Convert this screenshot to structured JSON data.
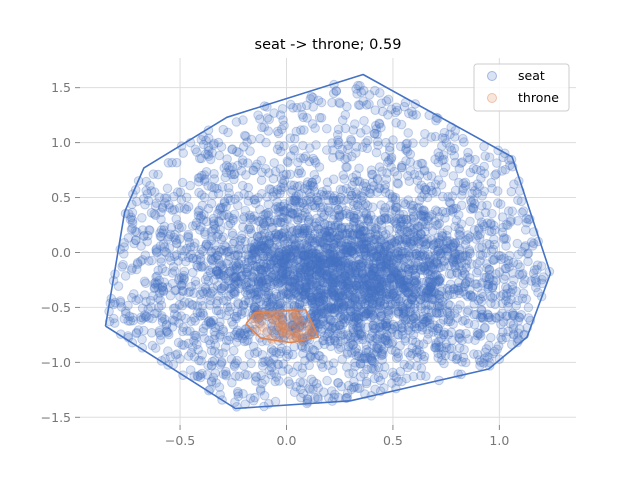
{
  "chart_data": {
    "type": "scatter",
    "title": "seat -> throne; 0.59",
    "xlabel": "",
    "ylabel": "",
    "xlim": [
      -0.97,
      1.36
    ],
    "ylim": [
      -1.57,
      1.77
    ],
    "xticks": [
      -0.5,
      0.0,
      0.5,
      1.0
    ],
    "yticks": [
      -1.5,
      -1.0,
      -0.5,
      0.0,
      0.5,
      1.0,
      1.5
    ],
    "xtick_labels": [
      "−0.5",
      "0.0",
      "0.5",
      "1.0"
    ],
    "ytick_labels": [
      "−1.5",
      "−1.0",
      "−0.5",
      "0.0",
      "0.5",
      "1.0",
      "1.5"
    ],
    "grid": true,
    "legend_position": "top-right",
    "series": [
      {
        "name": "seat",
        "color": "#4472c4",
        "point_count": 4000,
        "hull": [
          [
            -0.85,
            -0.67
          ],
          [
            -0.76,
            0.37
          ],
          [
            -0.67,
            0.77
          ],
          [
            -0.28,
            1.23
          ],
          [
            0.36,
            1.62
          ],
          [
            1.06,
            0.87
          ],
          [
            1.24,
            -0.19
          ],
          [
            1.13,
            -0.77
          ],
          [
            0.95,
            -1.06
          ],
          [
            0.3,
            -1.35
          ],
          [
            -0.24,
            -1.42
          ],
          [
            -0.85,
            -0.67
          ]
        ],
        "cluster_center": [
          0.25,
          -0.2
        ]
      },
      {
        "name": "throne",
        "color": "#dd8452",
        "point_count": 60,
        "hull": [
          [
            -0.19,
            -0.65
          ],
          [
            -0.15,
            -0.55
          ],
          [
            0.09,
            -0.52
          ],
          [
            0.15,
            -0.77
          ],
          [
            0.02,
            -0.82
          ],
          [
            -0.12,
            -0.78
          ],
          [
            -0.19,
            -0.65
          ]
        ],
        "cluster_center": [
          -0.02,
          -0.68
        ]
      }
    ]
  }
}
